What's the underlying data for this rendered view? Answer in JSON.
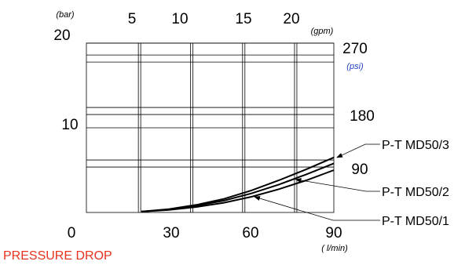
{
  "chart_data": {
    "type": "line",
    "title": "PRESSURE DROP",
    "x_primary": {
      "unit": "( l/min)",
      "range": [
        0,
        90
      ],
      "ticks": [
        "0",
        "30",
        "60",
        "90"
      ]
    },
    "x_secondary": {
      "unit": "(gpm)",
      "ticks": [
        "5",
        "10",
        "15",
        "20"
      ],
      "values_lmin": [
        18.9,
        37.9,
        56.8,
        75.7
      ]
    },
    "y_primary": {
      "unit": "(bar)",
      "range": [
        0,
        20
      ],
      "ticks": [
        "10",
        "20"
      ],
      "values": [
        10,
        20
      ]
    },
    "y_secondary": {
      "unit": "(psi)",
      "ticks": [
        "90",
        "180",
        "270"
      ],
      "values_bar": [
        6.2,
        12.4,
        18.6
      ]
    },
    "series": [
      {
        "name": "P-T MD50/3",
        "x": [
          20,
          30,
          40,
          50,
          60,
          70,
          80,
          90
        ],
        "y": [
          0.1,
          0.4,
          0.9,
          1.6,
          2.6,
          3.8,
          5.1,
          6.5
        ]
      },
      {
        "name": "P-T MD50/2",
        "x": [
          20,
          30,
          40,
          50,
          60,
          70,
          80,
          90
        ],
        "y": [
          0.1,
          0.35,
          0.8,
          1.4,
          2.25,
          3.3,
          4.5,
          5.8
        ]
      },
      {
        "name": "P-T MD50/1",
        "x": [
          20,
          30,
          40,
          50,
          60,
          70,
          80,
          90
        ],
        "y": [
          0.1,
          0.3,
          0.65,
          1.15,
          1.85,
          2.75,
          3.8,
          5.0
        ]
      }
    ],
    "legend_pointer_x": [
      90,
      75,
      60
    ],
    "legend": [
      "P-T MD50/3",
      "P-T MD50/2",
      "P-T MD50/1"
    ],
    "psi_color": "#1f3fbf",
    "title_color": "#e8321e",
    "grid": true
  }
}
